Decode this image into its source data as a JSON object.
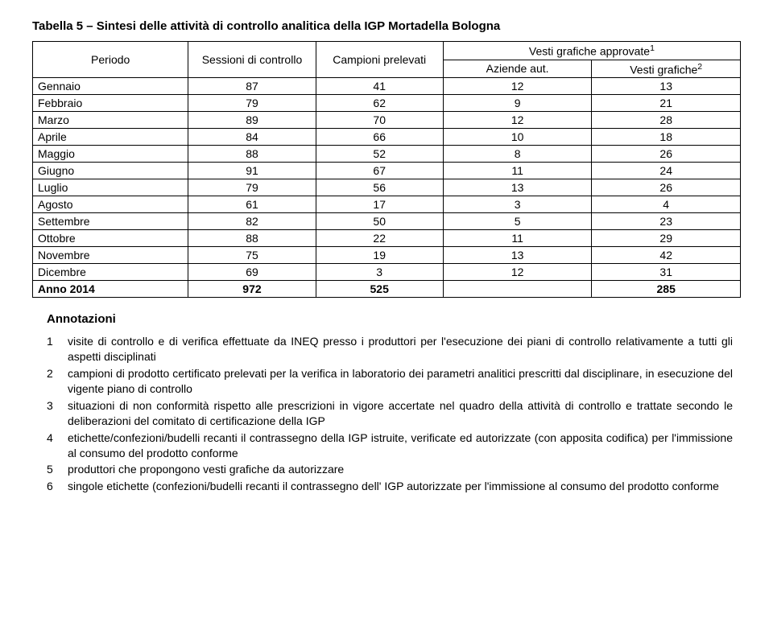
{
  "title": "Tabella 5 – Sintesi delle attività di controllo analitica della IGP Mortadella Bologna",
  "table": {
    "head": {
      "periodo": "Periodo",
      "sessioni": "Sessioni di controllo",
      "campioni": "Campioni prelevati",
      "vesti_top": "Vesti grafiche approvate",
      "vesti_top_sup": "1",
      "aziende": "Aziende aut.",
      "vesti": "Vesti grafiche",
      "vesti_sup": "2"
    },
    "rows": [
      {
        "label": "Gennaio",
        "sess": "87",
        "camp": "41",
        "az": "12",
        "vg": "13"
      },
      {
        "label": "Febbraio",
        "sess": "79",
        "camp": "62",
        "az": "9",
        "vg": "21"
      },
      {
        "label": "Marzo",
        "sess": "89",
        "camp": "70",
        "az": "12",
        "vg": "28"
      },
      {
        "label": "Aprile",
        "sess": "84",
        "camp": "66",
        "az": "10",
        "vg": "18"
      },
      {
        "label": "Maggio",
        "sess": "88",
        "camp": "52",
        "az": "8",
        "vg": "26"
      },
      {
        "label": "Giugno",
        "sess": "91",
        "camp": "67",
        "az": "11",
        "vg": "24"
      },
      {
        "label": "Luglio",
        "sess": "79",
        "camp": "56",
        "az": "13",
        "vg": "26"
      },
      {
        "label": "Agosto",
        "sess": "61",
        "camp": "17",
        "az": "3",
        "vg": "4"
      },
      {
        "label": "Settembre",
        "sess": "82",
        "camp": "50",
        "az": "5",
        "vg": "23"
      },
      {
        "label": "Ottobre",
        "sess": "88",
        "camp": "22",
        "az": "11",
        "vg": "29"
      },
      {
        "label": "Novembre",
        "sess": "75",
        "camp": "19",
        "az": "13",
        "vg": "42"
      },
      {
        "label": "Dicembre",
        "sess": "69",
        "camp": "3",
        "az": "12",
        "vg": "31"
      }
    ],
    "total": {
      "label": "Anno 2014",
      "sess": "972",
      "camp": "525",
      "az": "",
      "vg": "285"
    }
  },
  "annotations": {
    "heading": "Annotazioni",
    "items": [
      {
        "n": "1",
        "text": "visite di controllo e di verifica effettuate da INEQ presso i produttori per l'esecuzione dei piani di controllo relativamente a tutti gli aspetti disciplinati"
      },
      {
        "n": "2",
        "text": "campioni di prodotto certificato prelevati per la verifica in laboratorio dei parametri analitici prescritti dal disciplinare, in esecuzione del vigente piano di controllo"
      },
      {
        "n": "3",
        "text": "situazioni di non conformità rispetto alle prescrizioni in vigore accertate nel quadro della attività di controllo e trattate secondo le deliberazioni del comitato di certificazione della IGP"
      },
      {
        "n": "4",
        "text": "etichette/confezioni/budelli recanti il contrassegno della IGP istruite, verificate ed autorizzate (con apposita codifica) per l'immissione al consumo del prodotto conforme"
      },
      {
        "n": "5",
        "text": "produttori che propongono vesti grafiche da autorizzare"
      },
      {
        "n": "6",
        "text": "singole etichette (confezioni/budelli recanti il contrassegno dell' IGP autorizzate per l'immissione al consumo del prodotto conforme"
      }
    ]
  }
}
